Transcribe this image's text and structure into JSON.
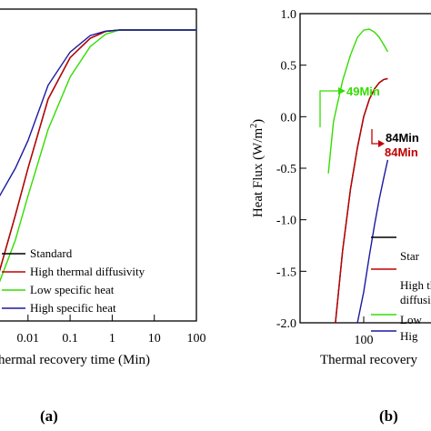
{
  "chart_data": [
    {
      "panel_label": "(a)",
      "type": "line",
      "x_scale": "log",
      "xlabel_visible": "hermal recovery time (Min)",
      "xticks": [
        "0.01",
        "0.1",
        "1",
        "10",
        "100"
      ],
      "x_range": [
        0.0015,
        100
      ],
      "y_range": [
        0,
        1
      ],
      "legend": {
        "placement": "bottom-right",
        "entries": [
          "Standard",
          "High thermal diffusivity",
          "Low specific heat",
          "High specific heat"
        ]
      },
      "series": [
        {
          "name": "Standard",
          "color": "#000000",
          "x": [
            0.0015,
            0.005,
            0.01,
            0.03,
            0.1,
            0.3,
            0.7,
            1.5,
            3,
            10,
            100
          ],
          "y": [
            0.05,
            0.33,
            0.5,
            0.75,
            0.9,
            0.97,
            0.995,
            1.0,
            1.0,
            1.0,
            1.0
          ]
        },
        {
          "name": "High thermal diffusivity",
          "color": "#c00000",
          "x": [
            0.0015,
            0.005,
            0.01,
            0.03,
            0.1,
            0.3,
            0.7,
            1.5,
            3,
            10,
            100
          ],
          "y": [
            0.05,
            0.33,
            0.5,
            0.75,
            0.9,
            0.97,
            0.995,
            1.0,
            1.0,
            1.0,
            1.0
          ]
        },
        {
          "name": "Low specific heat",
          "color": "#33dd00",
          "x": [
            0.0015,
            0.005,
            0.01,
            0.03,
            0.1,
            0.3,
            0.7,
            1.5,
            3,
            10,
            100
          ],
          "y": [
            0.03,
            0.24,
            0.4,
            0.64,
            0.83,
            0.94,
            0.985,
            1.0,
            1.0,
            1.0,
            1.0
          ]
        },
        {
          "name": "High specific heat",
          "color": "#1a1aa0",
          "x": [
            0.0015,
            0.005,
            0.01,
            0.03,
            0.1,
            0.3,
            0.7,
            1.5,
            3,
            10,
            100
          ],
          "y": [
            0.36,
            0.5,
            0.6,
            0.8,
            0.92,
            0.98,
            0.996,
            1.0,
            1.0,
            1.0,
            1.0
          ]
        }
      ]
    },
    {
      "panel_label": "(b)",
      "type": "line",
      "x_scale": "log",
      "xlabel_visible": "Thermal recovery",
      "ylabel": "Heat Flux (W/m²)",
      "xticks": [
        "100"
      ],
      "yticks": [
        "1.0",
        "0.5",
        "0.0",
        "-0.5",
        "-1.0",
        "-1.5",
        "-2.0"
      ],
      "y_range": [
        -2.0,
        1.0
      ],
      "legend": {
        "placement": "bottom-right",
        "entries_visible": [
          "Star",
          "High th",
          "diffusi",
          "Low",
          "Hig"
        ]
      },
      "annotations": [
        {
          "text": "49Min",
          "color": "#33dd00"
        },
        {
          "text": "84Min",
          "color": "#000000"
        },
        {
          "text": "84Min",
          "color": "#c00000"
        }
      ],
      "series": [
        {
          "name": "Standard",
          "color": "#000000",
          "x": [
            62,
            70,
            80,
            90,
            100,
            110,
            120,
            130,
            140,
            150
          ],
          "y": [
            -2.0,
            -1.3,
            -0.7,
            -0.3,
            0.0,
            0.17,
            0.27,
            0.33,
            0.36,
            0.37
          ]
        },
        {
          "name": "High thermal diffusivity",
          "color": "#c00000",
          "x": [
            62,
            70,
            80,
            90,
            100,
            110,
            120,
            130,
            140,
            150
          ],
          "y": [
            -2.0,
            -1.3,
            -0.7,
            -0.3,
            0.0,
            0.17,
            0.27,
            0.33,
            0.36,
            0.37
          ]
        },
        {
          "name": "Low specific heat",
          "color": "#33dd00",
          "x": [
            55,
            60,
            70,
            80,
            90,
            100,
            110,
            120,
            130,
            140,
            150
          ],
          "y": [
            -0.55,
            -0.05,
            0.35,
            0.6,
            0.77,
            0.84,
            0.85,
            0.82,
            0.77,
            0.7,
            0.63
          ]
        },
        {
          "name": "High specific heat",
          "color": "#1a1aa0",
          "x": [
            90,
            100,
            110,
            120,
            130,
            140,
            150
          ],
          "y": [
            -2.0,
            -1.7,
            -1.35,
            -1.05,
            -0.8,
            -0.6,
            -0.42
          ]
        }
      ]
    }
  ]
}
